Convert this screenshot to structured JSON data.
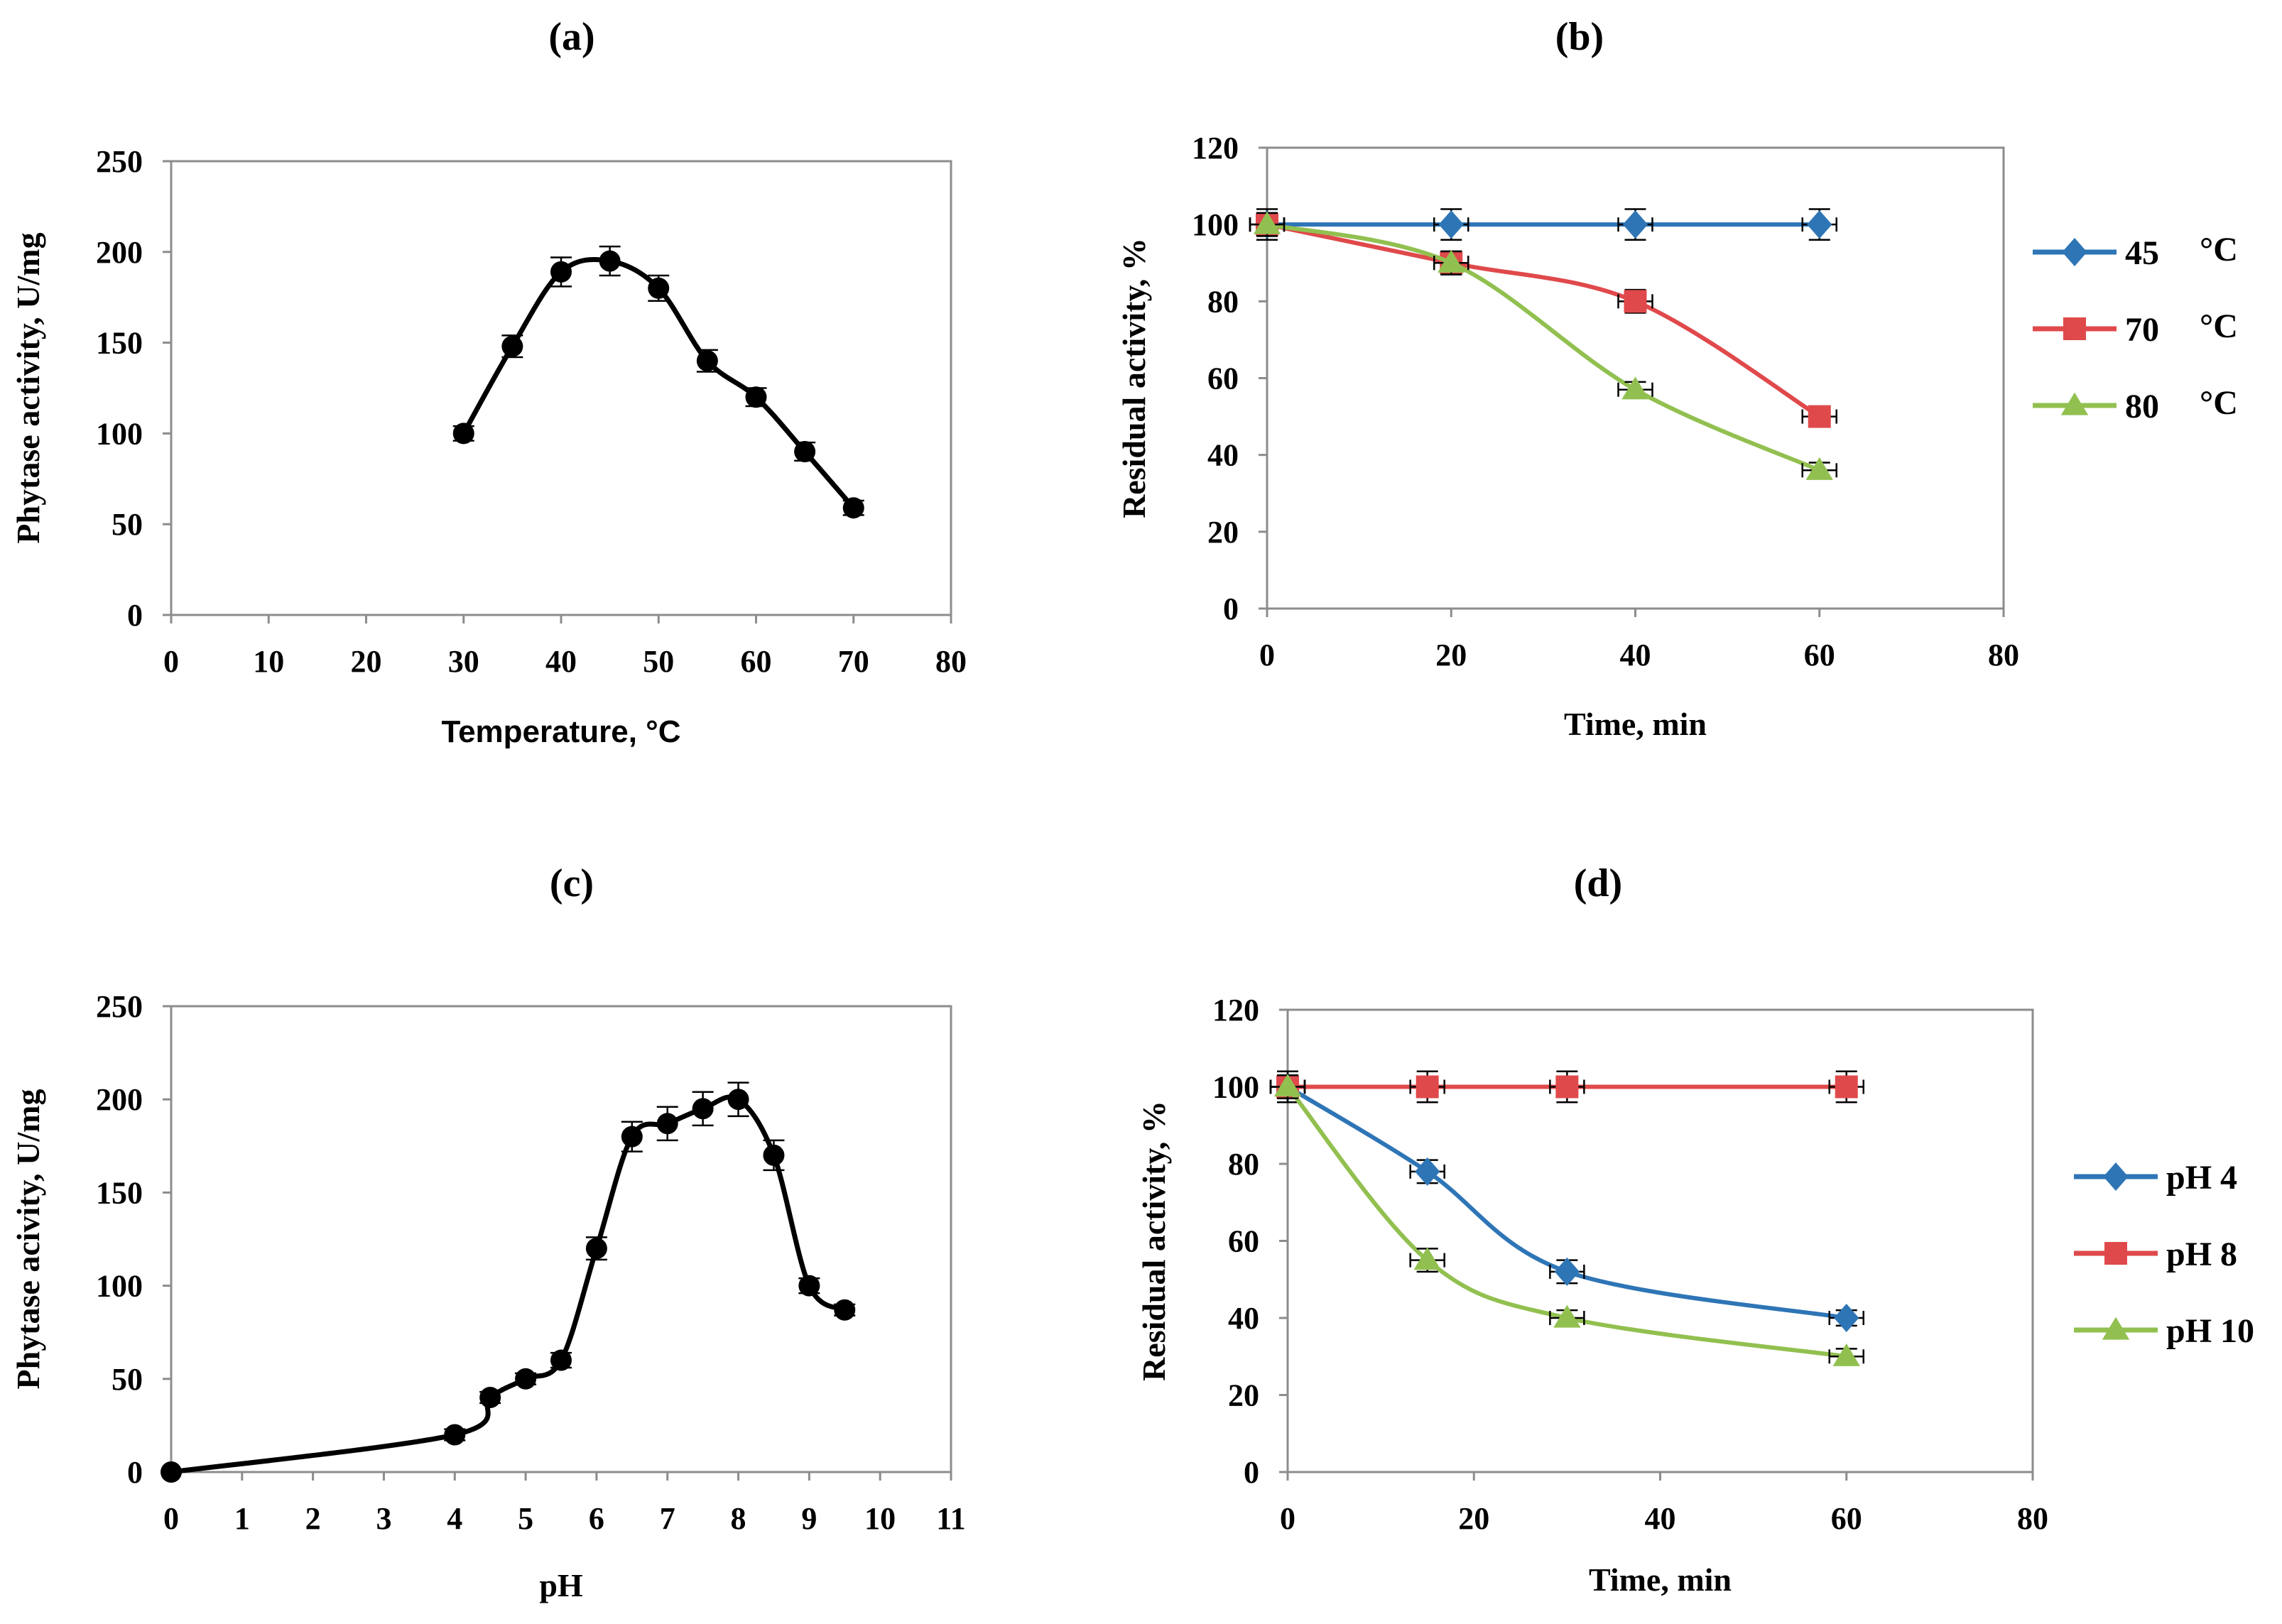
{
  "colors": {
    "black": "#000000",
    "blue": "#2E75B6",
    "red": "#E0494B",
    "green": "#92C050"
  },
  "chart_data": [
    {
      "id": "a",
      "panel_label": "(a)",
      "type": "line",
      "xlabel": "Temperature, °C",
      "ylabel": "Phytase activity, U/mg",
      "xlim": [
        0,
        80
      ],
      "ylim": [
        0,
        250
      ],
      "xticks": [
        "0",
        "10",
        "20",
        "30",
        "40",
        "50",
        "60",
        "70",
        "80"
      ],
      "yticks": [
        "0",
        "50",
        "100",
        "150",
        "200",
        "250"
      ],
      "grid": false,
      "legend": null,
      "series": [
        {
          "name": "activity",
          "color": "#000000",
          "marker": "circle",
          "x": [
            30,
            35,
            40,
            45,
            50,
            55,
            60,
            65,
            70
          ],
          "y": [
            100,
            148,
            189,
            195,
            180,
            140,
            120,
            90,
            59
          ],
          "error": [
            4,
            6,
            8,
            8,
            7,
            6,
            5,
            5,
            4
          ]
        }
      ]
    },
    {
      "id": "b",
      "panel_label": "(b)",
      "type": "line",
      "xlabel": "Time, min",
      "ylabel": "Residual activity, %",
      "xlim": [
        0,
        80
      ],
      "ylim": [
        0,
        120
      ],
      "xticks": [
        "0",
        "20",
        "40",
        "60",
        "80"
      ],
      "yticks": [
        "0",
        "20",
        "40",
        "60",
        "80",
        "100",
        "120"
      ],
      "grid": false,
      "legend": "right",
      "series": [
        {
          "name": "45",
          "unit": "°C",
          "color": "#2E75B6",
          "marker": "diamond",
          "x": [
            0,
            20,
            40,
            60
          ],
          "y": [
            100,
            100,
            100,
            100
          ],
          "error": [
            4,
            4,
            4,
            4
          ]
        },
        {
          "name": "70",
          "unit": "°C",
          "color": "#E0494B",
          "marker": "square",
          "x": [
            0,
            20,
            40,
            60
          ],
          "y": [
            100,
            90,
            80,
            50
          ],
          "error": [
            3,
            3,
            3,
            2
          ]
        },
        {
          "name": "80",
          "unit": "°C",
          "color": "#92C050",
          "marker": "triangle",
          "x": [
            0,
            20,
            40,
            60
          ],
          "y": [
            100,
            90,
            57,
            36
          ],
          "error": [
            3,
            3,
            2,
            2
          ]
        }
      ]
    },
    {
      "id": "c",
      "panel_label": "(c)",
      "type": "line",
      "xlabel": "pH",
      "ylabel": "Phytase acivity, U/mg",
      "xlim": [
        0,
        11
      ],
      "ylim": [
        0,
        250
      ],
      "xticks": [
        "0",
        "1",
        "2",
        "3",
        "4",
        "5",
        "6",
        "7",
        "8",
        "9",
        "10",
        "11"
      ],
      "yticks": [
        "0",
        "50",
        "100",
        "150",
        "200",
        "250"
      ],
      "grid": false,
      "legend": null,
      "series": [
        {
          "name": "activity",
          "color": "#000000",
          "marker": "circle",
          "x": [
            0,
            4,
            4.5,
            5,
            5.5,
            6,
            6.5,
            7,
            7.5,
            8,
            8.5,
            9,
            9.5
          ],
          "y": [
            0,
            20,
            40,
            50,
            60,
            120,
            180,
            187,
            195,
            200,
            170,
            100,
            87
          ],
          "error": [
            0,
            3,
            3,
            3,
            4,
            6,
            8,
            9,
            9,
            9,
            8,
            4,
            3
          ]
        }
      ]
    },
    {
      "id": "d",
      "panel_label": "(d)",
      "type": "line",
      "xlabel": "Time, min",
      "ylabel": "Residual  activity, %",
      "xlim": [
        0,
        80
      ],
      "ylim": [
        0,
        120
      ],
      "xticks": [
        "0",
        "20",
        "40",
        "60",
        "80"
      ],
      "yticks": [
        "0",
        "20",
        "40",
        "60",
        "80",
        "100",
        "120"
      ],
      "grid": false,
      "legend": "right",
      "series": [
        {
          "name": "pH 4",
          "color": "#2E75B6",
          "marker": "diamond",
          "x": [
            0,
            15,
            30,
            60
          ],
          "y": [
            100,
            78,
            52,
            40
          ],
          "error": [
            3,
            3,
            3,
            2
          ]
        },
        {
          "name": "pH 8",
          "color": "#E0494B",
          "marker": "square",
          "x": [
            0,
            15,
            30,
            60
          ],
          "y": [
            100,
            100,
            100,
            100
          ],
          "error": [
            4,
            4,
            4,
            4
          ]
        },
        {
          "name": "pH 10",
          "color": "#92C050",
          "marker": "triangle",
          "x": [
            0,
            15,
            30,
            60
          ],
          "y": [
            100,
            55,
            40,
            30
          ],
          "error": [
            3,
            3,
            2,
            2
          ]
        }
      ]
    }
  ]
}
